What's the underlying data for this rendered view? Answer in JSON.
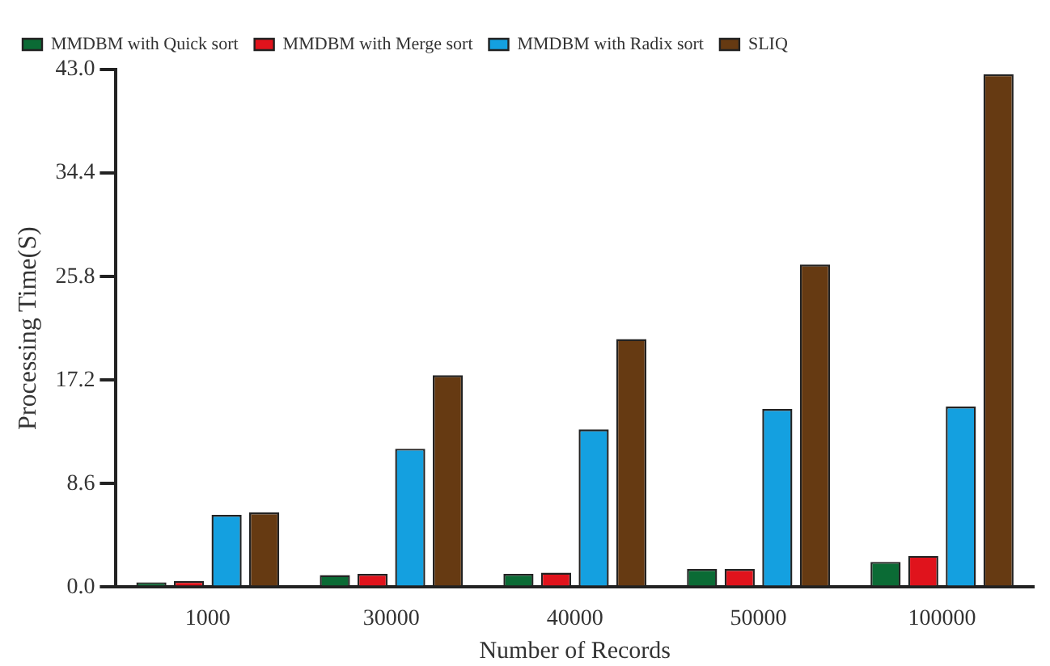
{
  "chart_data": {
    "type": "bar",
    "xlabel": "Number of Records",
    "ylabel": "Processing Time(S)",
    "categories": [
      "1000",
      "30000",
      "40000",
      "50000",
      "100000"
    ],
    "series": [
      {
        "name": "MMDBM with Quick sort",
        "color": "#0b6b35",
        "values": [
          0.4,
          1.0,
          1.1,
          1.5,
          2.1
        ]
      },
      {
        "name": "MMDBM with Merge sort",
        "color": "#e0131c",
        "values": [
          0.5,
          1.1,
          1.2,
          1.5,
          2.6
        ]
      },
      {
        "name": "MMDBM with Radix sort",
        "color": "#14a0e0",
        "values": [
          6.0,
          11.5,
          13.1,
          14.8,
          15.0
        ]
      },
      {
        "name": "SLIQ",
        "color": "#663a12",
        "values": [
          6.2,
          17.6,
          20.6,
          26.8,
          42.6
        ]
      }
    ],
    "ylim": [
      0,
      43
    ],
    "yticks": [
      {
        "value": 0,
        "label": "0.0"
      },
      {
        "value": 8.6,
        "label": "8.6"
      },
      {
        "value": 17.2,
        "label": "17.2"
      },
      {
        "value": 25.8,
        "label": "25.8"
      },
      {
        "value": 34.4,
        "label": "34.4"
      },
      {
        "value": 43,
        "label": "43.0"
      }
    ],
    "grid": false,
    "legend": "top left"
  }
}
